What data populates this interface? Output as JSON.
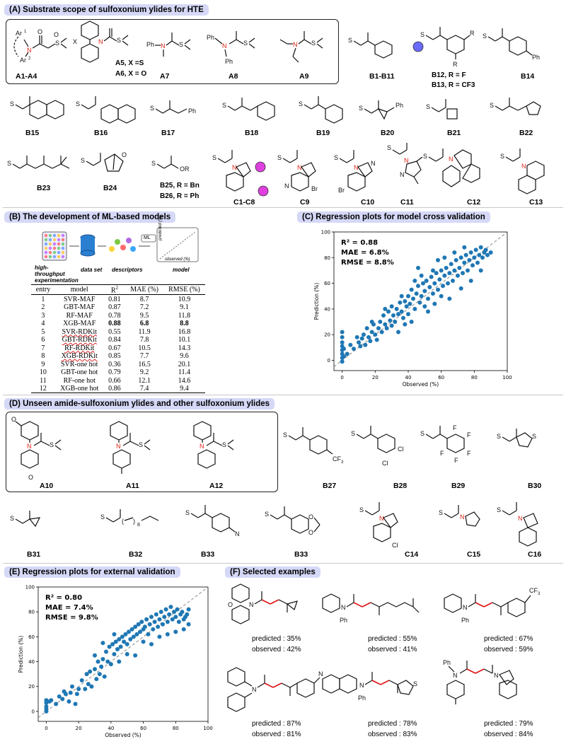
{
  "sections": {
    "A": "(A) Substrate scope of sulfoxonium ylides for HTE",
    "B": "(B) The development of ML-based models",
    "C": "(C) Regression plots for model cross validation",
    "D": "(D) Unseen amide-sulfoxonium ylides and other sulfoxonium ylides",
    "E": "(E) Regression plots for external validation",
    "F": "(F) Selected examples"
  },
  "panelA": {
    "labels": [
      "A1-A4",
      "A7",
      "A8",
      "A9",
      "B1-B11",
      "B14",
      "B15",
      "B16",
      "B17",
      "B18",
      "B19",
      "B20",
      "B21",
      "B22",
      "B23",
      "B24",
      "C1-C8",
      "C9",
      "C10",
      "C11",
      "C12",
      "C13"
    ],
    "notes": {
      "a5": "A5, X =S",
      "a6": "A6, X = O",
      "b12": "B12, R = F",
      "b13": "B13, R = CF3",
      "b25": "B25, R = Bn",
      "b26": "B26, R = Ph"
    }
  },
  "panelB": {
    "workflow": [
      "high-throughput experimentation",
      "data set",
      "descriptors",
      "model"
    ],
    "ml_tag": "ML",
    "mini_axes": {
      "y": "predicted (%)",
      "x": "observed (%)"
    },
    "table": {
      "headers": [
        "entry",
        "model",
        "R2",
        "MAE (%)",
        "RMSE (%)"
      ],
      "rows": [
        [
          "1",
          "SVR-MAF",
          "0.81",
          "8.7",
          "10.9"
        ],
        [
          "2",
          "GBT-MAF",
          "0.87",
          "7.2",
          "9.1"
        ],
        [
          "3",
          "RF-MAF",
          "0.78",
          "9.5",
          "11.8"
        ],
        [
          "4",
          "XGB-MAF",
          "0.88",
          "6.8",
          "8.8"
        ],
        [
          "5",
          "SVR-RDKit",
          "0.55",
          "11.9",
          "16.8"
        ],
        [
          "6",
          "GBT-RDKit",
          "0.84",
          "7.8",
          "10.1"
        ],
        [
          "7",
          "RF-RDKit",
          "0.67",
          "10.5",
          "14.3"
        ],
        [
          "8",
          "XGB-RDKit",
          "0.85",
          "7.7",
          "9.6"
        ],
        [
          "9",
          "SVR-one hot",
          "0.36",
          "16.5",
          "20.1"
        ],
        [
          "10",
          "GBT-one hot",
          "0.79",
          "9.2",
          "11.4"
        ],
        [
          "11",
          "RF-one hot",
          "0.66",
          "12.1",
          "14.6"
        ],
        [
          "12",
          "XGB-one hot",
          "0.86",
          "7.4",
          "9.4"
        ]
      ]
    }
  },
  "panelD": {
    "labels": [
      "A10",
      "A11",
      "A12",
      "B27",
      "B28",
      "B29",
      "B30",
      "B31",
      "B32",
      "B33",
      "B33",
      "C14",
      "C15",
      "C16"
    ]
  },
  "panelF": {
    "examples": [
      {
        "predicted": "predicted : 35%",
        "observed": "observed : 42%"
      },
      {
        "predicted": "predicted : 55%",
        "observed": "observed : 41%"
      },
      {
        "predicted": "predicted : 67%",
        "observed": "observed : 59%"
      },
      {
        "predicted": "predicted : 87%",
        "observed": "observed : 81%"
      },
      {
        "predicted": "predicted : 78%",
        "observed": "observed : 83%"
      },
      {
        "predicted": "predicted : 79%",
        "observed": "observed : 84%"
      }
    ]
  },
  "colors": {
    "points": "#1f77b4",
    "header_bg": "#d5d8f6",
    "highlight": "#e01010",
    "bead_blue": "#6a6aff",
    "bead_pink": "#e040e0"
  },
  "chart_data": [
    {
      "type": "scatter",
      "panel": "C",
      "title": "",
      "xlabel": "Observed (%)",
      "ylabel": "Prediction (%)",
      "xlim": [
        -5,
        100
      ],
      "ylim": [
        -8,
        100
      ],
      "xticks": [
        0,
        20,
        40,
        60,
        80,
        100
      ],
      "yticks": [
        0,
        20,
        40,
        60,
        80,
        100
      ],
      "grid": false,
      "diagonal": true,
      "annotations": [
        "R² = 0.88",
        "MAE = 6.8%",
        "RMSE = 8.8%"
      ],
      "approx_points": 480,
      "points": [
        [
          0,
          2
        ],
        [
          0,
          5
        ],
        [
          0,
          8
        ],
        [
          0,
          11
        ],
        [
          0,
          14
        ],
        [
          0,
          18
        ],
        [
          0,
          22
        ],
        [
          0,
          -1
        ],
        [
          1,
          3
        ],
        [
          1,
          9
        ],
        [
          3,
          5
        ],
        [
          5,
          12
        ],
        [
          7,
          9
        ],
        [
          9,
          18
        ],
        [
          10,
          14
        ],
        [
          11,
          11
        ],
        [
          12,
          17
        ],
        [
          13,
          20
        ],
        [
          14,
          12
        ],
        [
          15,
          25
        ],
        [
          16,
          18
        ],
        [
          17,
          15
        ],
        [
          18,
          22
        ],
        [
          19,
          28
        ],
        [
          20,
          20
        ],
        [
          21,
          16
        ],
        [
          22,
          25
        ],
        [
          23,
          30
        ],
        [
          24,
          22
        ],
        [
          25,
          35
        ],
        [
          26,
          28
        ],
        [
          27,
          25
        ],
        [
          28,
          38
        ],
        [
          29,
          31
        ],
        [
          30,
          27
        ],
        [
          30,
          42
        ],
        [
          31,
          35
        ],
        [
          32,
          30
        ],
        [
          33,
          40
        ],
        [
          34,
          36
        ],
        [
          35,
          45
        ],
        [
          36,
          38
        ],
        [
          37,
          33
        ],
        [
          38,
          46
        ],
        [
          39,
          42
        ],
        [
          40,
          50
        ],
        [
          40,
          36
        ],
        [
          41,
          44
        ],
        [
          42,
          55
        ],
        [
          43,
          48
        ],
        [
          44,
          40
        ],
        [
          45,
          52
        ],
        [
          46,
          58
        ],
        [
          47,
          45
        ],
        [
          48,
          50
        ],
        [
          49,
          60
        ],
        [
          50,
          54
        ],
        [
          50,
          42
        ],
        [
          51,
          62
        ],
        [
          52,
          48
        ],
        [
          53,
          57
        ],
        [
          54,
          65
        ],
        [
          55,
          52
        ],
        [
          56,
          60
        ],
        [
          57,
          68
        ],
        [
          58,
          55
        ],
        [
          59,
          63
        ],
        [
          60,
          70
        ],
        [
          60,
          50
        ],
        [
          61,
          58
        ],
        [
          62,
          66
        ],
        [
          63,
          72
        ],
        [
          64,
          60
        ],
        [
          65,
          68
        ],
        [
          66,
          75
        ],
        [
          67,
          62
        ],
        [
          68,
          70
        ],
        [
          69,
          78
        ],
        [
          70,
          66
        ],
        [
          71,
          72
        ],
        [
          72,
          80
        ],
        [
          73,
          68
        ],
        [
          74,
          76
        ],
        [
          75,
          82
        ],
        [
          76,
          70
        ],
        [
          77,
          78
        ],
        [
          78,
          84
        ],
        [
          79,
          74
        ],
        [
          80,
          80
        ],
        [
          81,
          86
        ],
        [
          82,
          76
        ],
        [
          83,
          82
        ],
        [
          84,
          88
        ],
        [
          85,
          80
        ],
        [
          86,
          84
        ],
        [
          87,
          86
        ],
        [
          88,
          82
        ],
        [
          90,
          84
        ],
        [
          58,
          78
        ],
        [
          46,
          72
        ],
        [
          72,
          56
        ],
        [
          65,
          48
        ],
        [
          44,
          62
        ],
        [
          38,
          28
        ],
        [
          52,
          38
        ],
        [
          84,
          70
        ],
        [
          36,
          50
        ],
        [
          62,
          80
        ],
        [
          55,
          70
        ],
        [
          26,
          40
        ],
        [
          18,
          30
        ],
        [
          78,
          62
        ],
        [
          68,
          84
        ],
        [
          48,
          66
        ],
        [
          34,
          22
        ],
        [
          56,
          44
        ],
        [
          74,
          88
        ],
        [
          42,
          30
        ]
      ]
    },
    {
      "type": "scatter",
      "panel": "E",
      "title": "",
      "xlabel": "Observed (%)",
      "ylabel": "Prediction (%)",
      "xlim": [
        -5,
        100
      ],
      "ylim": [
        -8,
        100
      ],
      "xticks": [
        0,
        20,
        40,
        60,
        80,
        100
      ],
      "yticks": [
        0,
        20,
        40,
        60,
        80,
        100
      ],
      "grid": false,
      "diagonal": true,
      "annotations": [
        "R² = 0.80",
        "MAE = 7.4%",
        "RMSE = 9.8%"
      ],
      "approx_points": 300,
      "points": [
        [
          0,
          0
        ],
        [
          0,
          2
        ],
        [
          0,
          4
        ],
        [
          0,
          7
        ],
        [
          0,
          9
        ],
        [
          2,
          8
        ],
        [
          3,
          9
        ],
        [
          6,
          6
        ],
        [
          8,
          12
        ],
        [
          10,
          10
        ],
        [
          11,
          16
        ],
        [
          12,
          14
        ],
        [
          14,
          8
        ],
        [
          15,
          15
        ],
        [
          16,
          20
        ],
        [
          18,
          6
        ],
        [
          19,
          14
        ],
        [
          20,
          18
        ],
        [
          22,
          25
        ],
        [
          24,
          18
        ],
        [
          25,
          30
        ],
        [
          26,
          22
        ],
        [
          27,
          32
        ],
        [
          28,
          20
        ],
        [
          30,
          34
        ],
        [
          30,
          45
        ],
        [
          31,
          26
        ],
        [
          32,
          40
        ],
        [
          33,
          30
        ],
        [
          34,
          36
        ],
        [
          35,
          42
        ],
        [
          36,
          28
        ],
        [
          37,
          48
        ],
        [
          38,
          40
        ],
        [
          39,
          52
        ],
        [
          40,
          38
        ],
        [
          41,
          54
        ],
        [
          42,
          46
        ],
        [
          43,
          56
        ],
        [
          44,
          50
        ],
        [
          45,
          58
        ],
        [
          46,
          52
        ],
        [
          47,
          60
        ],
        [
          48,
          56
        ],
        [
          49,
          62
        ],
        [
          50,
          54
        ],
        [
          51,
          64
        ],
        [
          52,
          58
        ],
        [
          53,
          66
        ],
        [
          54,
          60
        ],
        [
          55,
          68
        ],
        [
          56,
          62
        ],
        [
          57,
          70
        ],
        [
          58,
          64
        ],
        [
          59,
          72
        ],
        [
          60,
          66
        ],
        [
          60,
          56
        ],
        [
          61,
          68
        ],
        [
          62,
          74
        ],
        [
          63,
          62
        ],
        [
          64,
          70
        ],
        [
          65,
          76
        ],
        [
          66,
          66
        ],
        [
          67,
          72
        ],
        [
          68,
          78
        ],
        [
          69,
          68
        ],
        [
          70,
          74
        ],
        [
          71,
          80
        ],
        [
          72,
          70
        ],
        [
          73,
          76
        ],
        [
          74,
          82
        ],
        [
          75,
          72
        ],
        [
          76,
          78
        ],
        [
          77,
          84
        ],
        [
          78,
          74
        ],
        [
          79,
          80
        ],
        [
          80,
          76
        ],
        [
          81,
          82
        ],
        [
          82,
          72
        ],
        [
          83,
          78
        ],
        [
          84,
          80
        ],
        [
          85,
          74
        ],
        [
          86,
          76
        ],
        [
          87,
          78
        ],
        [
          88,
          70
        ],
        [
          88,
          82
        ],
        [
          55,
          45
        ],
        [
          45,
          40
        ],
        [
          65,
          54
        ],
        [
          75,
          62
        ],
        [
          80,
          64
        ],
        [
          70,
          60
        ],
        [
          50,
          46
        ],
        [
          35,
          55
        ],
        [
          42,
          62
        ],
        [
          85,
          66
        ]
      ]
    }
  ]
}
